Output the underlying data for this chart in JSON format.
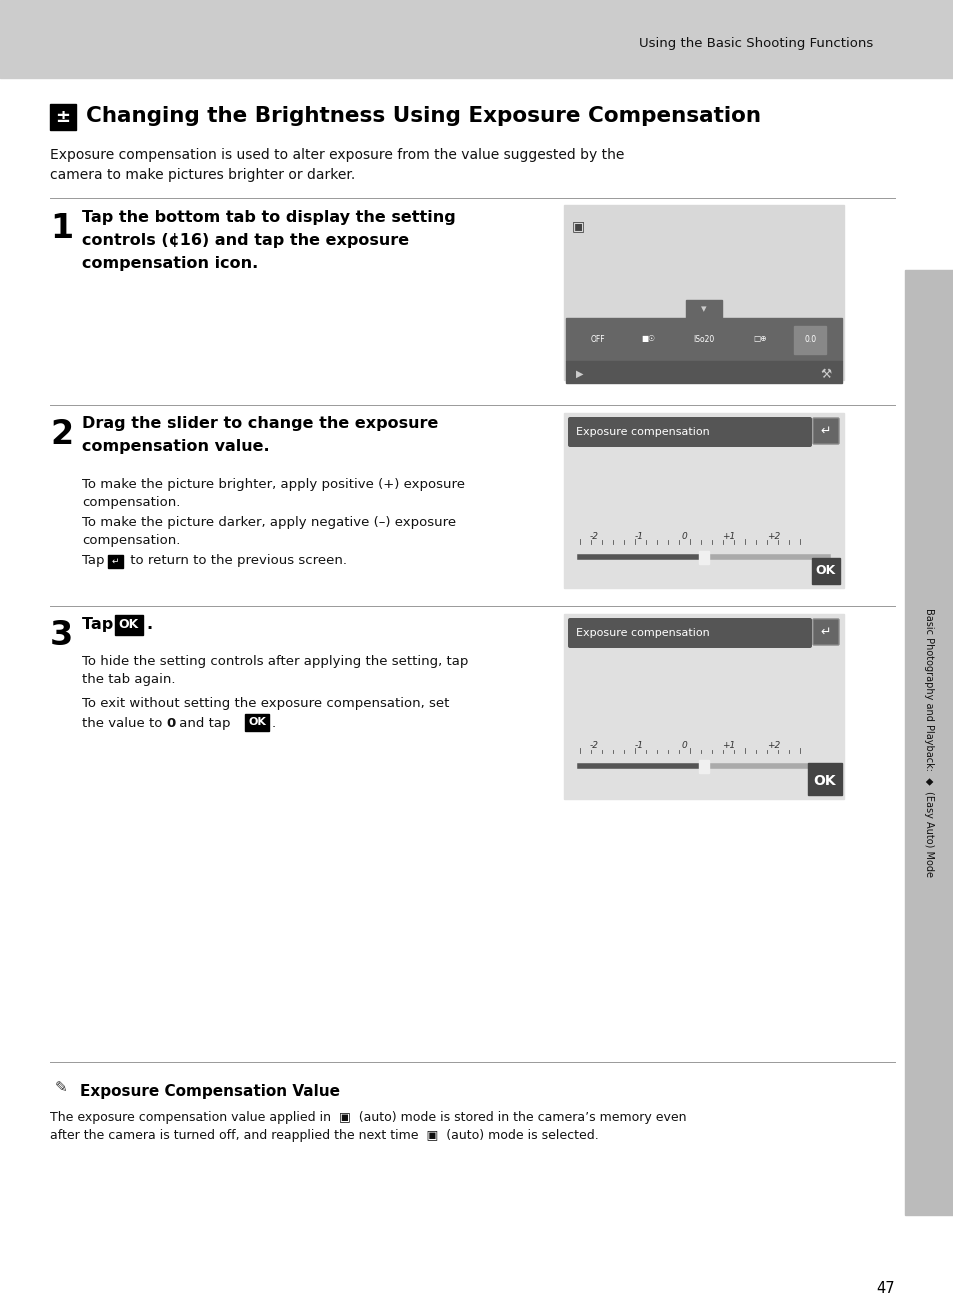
{
  "page_bg": "#ffffff",
  "header_bg": "#cccccc",
  "header_text": "Using the Basic Shooting Functions",
  "title_text": "Changing the Brightness Using Exposure Compensation",
  "intro_text": "Exposure compensation is used to alter exposure from the value suggested by the\ncamera to make pictures brighter or darker.",
  "step1_heading": "Tap the bottom tab to display the setting\ncontrols (¢16) and tap the exposure\ncompensation icon.",
  "step2_heading": "Drag the slider to change the exposure\ncompensation value.",
  "step2_body1": "To make the picture brighter, apply positive (+) exposure\ncompensation.",
  "step2_body2": "To make the picture darker, apply negative (–) exposure\ncompensation.",
  "step2_body3": "Tap     to return to the previous screen.",
  "step3_heading": "Tap     .",
  "step3_body1": "To hide the setting controls after applying the setting, tap\nthe tab again.",
  "step3_body2": "To exit without setting the exposure compensation, set\nthe value to ",
  "step3_body2b": " and tap     .",
  "note_title": "Exposure Compensation Value",
  "note_body": "The exposure compensation value applied in     (auto) mode is stored in the camera’s memory even\nafter the camera is turned off, and reapplied the next time     (auto) mode is selected.",
  "page_number": "47",
  "sidebar_text": "Basic Photography and Playback:     (Easy Auto) Mode",
  "exp_comp_label": "Exposure compensation",
  "screen1_bg": "#d8d8d8",
  "screen2_bg": "#e0e0e0",
  "screen3_bg": "#e0e0e0",
  "topbar_color": "#555555",
  "ok_color": "#333333"
}
